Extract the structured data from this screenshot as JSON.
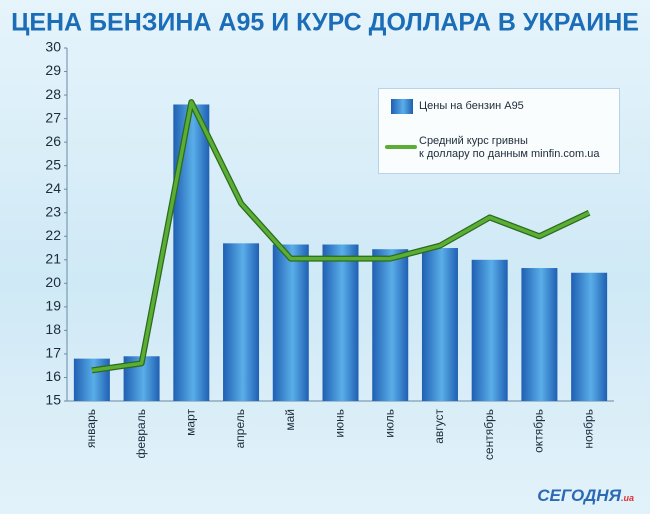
{
  "chart_data": {
    "type": "bar_line",
    "title": "ЦЕНА  БЕНЗИНА А95 И КУРС ДОЛЛАРА В УКРАИНЕ",
    "categories": [
      "январь",
      "февраль",
      "март",
      "апрель",
      "май",
      "июнь",
      "июль",
      "август",
      "сентябрь",
      "октябрь",
      "ноябрь"
    ],
    "series": [
      {
        "name": "Цены на  бензин А95",
        "type": "bar",
        "color": "#1f5fb3",
        "values": [
          16.8,
          16.9,
          27.6,
          21.7,
          21.65,
          21.65,
          21.45,
          21.5,
          21.0,
          20.65,
          20.45
        ]
      },
      {
        "name": "Средний курс гривны\nк доллару по данным minfin.com.ua",
        "type": "line",
        "color": "#5aae35",
        "values": [
          16.3,
          16.6,
          27.7,
          23.4,
          21.05,
          21.05,
          21.05,
          21.6,
          22.8,
          22.0,
          23.0
        ]
      }
    ],
    "ylim": [
      15,
      30
    ],
    "yticks": [
      15,
      16,
      17,
      18,
      19,
      20,
      21,
      22,
      23,
      24,
      25,
      26,
      27,
      28,
      29,
      30
    ],
    "grid": false,
    "legend": "top-right",
    "source": {
      "name": "СЕГОДНЯ",
      "suffix": ".ua"
    }
  }
}
